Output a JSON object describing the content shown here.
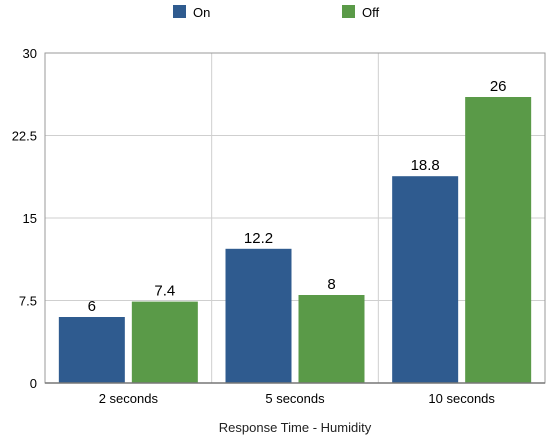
{
  "chart_data": {
    "type": "bar",
    "title": "",
    "xlabel": "Response Time - Humidity",
    "ylabel": "",
    "categories": [
      "2 seconds",
      "5 seconds",
      "10 seconds"
    ],
    "series": [
      {
        "name": "On",
        "values": [
          6,
          12.2,
          18.8
        ],
        "data_labels": [
          "6",
          "12.2",
          "18.8"
        ],
        "color": "#2f5b8f"
      },
      {
        "name": "Off",
        "values": [
          7.4,
          8,
          26
        ],
        "data_labels": [
          "7.4",
          "8",
          "26"
        ],
        "color": "#5a9a48"
      }
    ],
    "ylim": [
      0,
      30
    ],
    "yticks": [
      0,
      7.5,
      15,
      22.5,
      30
    ],
    "ytick_labels": [
      "0",
      "7.5",
      "15",
      "22.5",
      "30"
    ],
    "grid": true,
    "legend_position": "top"
  }
}
